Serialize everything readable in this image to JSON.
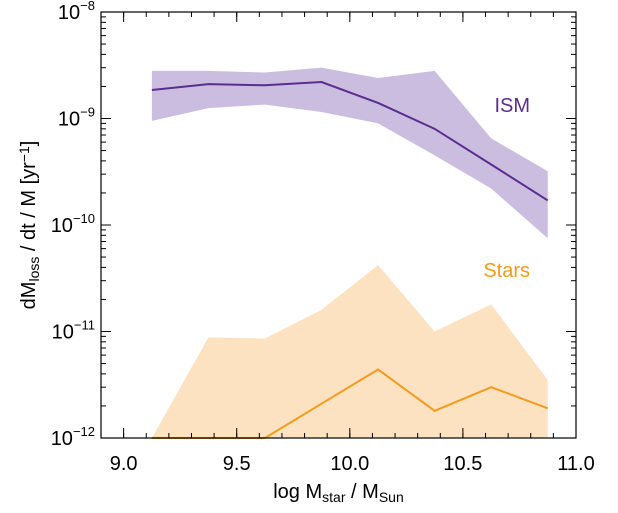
{
  "chart_data": {
    "type": "band-line",
    "x_label": [
      {
        "text": "log M"
      },
      {
        "text": "star",
        "sub": true
      },
      {
        "text": " / M"
      },
      {
        "text": "Sun",
        "sub": true
      }
    ],
    "y_label": [
      {
        "text": "dM"
      },
      {
        "text": "loss",
        "sub": true
      },
      {
        "text": " / dt / M [yr"
      },
      {
        "text": "−1",
        "sup": true
      },
      {
        "text": "]"
      }
    ],
    "x": [
      9.125,
      9.375,
      9.625,
      9.875,
      10.125,
      10.375,
      10.625,
      10.875
    ],
    "xlim": [
      8.9,
      11.0
    ],
    "xticks": [
      {
        "value": 9.0,
        "label": "9.0"
      },
      9.5,
      {
        "value": 10.0,
        "label": "10.0"
      },
      10.5,
      {
        "value": 11.0,
        "label": "11.0"
      }
    ],
    "ylim": [
      1e-12,
      1e-08
    ],
    "yscale": "log",
    "yticks": [
      {
        "value": 1e-12,
        "label": "10",
        "exponent": "−12"
      },
      {
        "value": 1e-11,
        "label": "10",
        "exponent": "−11"
      },
      {
        "value": 1e-10,
        "label": "10",
        "exponent": "−10"
      },
      {
        "value": 1e-09,
        "label": "10",
        "exponent": "−9"
      },
      {
        "value": 1e-08,
        "label": "10",
        "exponent": "−8"
      }
    ],
    "series": [
      {
        "name": "ISM",
        "color": "#5a2d8e",
        "band_color": "#cbbde0",
        "values": [
          1.85e-09,
          2.1e-09,
          2.05e-09,
          2.2e-09,
          1.4e-09,
          8e-10,
          3.7e-10,
          1.7e-10
        ],
        "upper": [
          2.8e-09,
          2.8e-09,
          2.7e-09,
          3e-09,
          2.4e-09,
          2.8e-09,
          6.5e-10,
          3.2e-10
        ],
        "lower": [
          9.5e-10,
          1.25e-09,
          1.35e-09,
          1.15e-09,
          9e-10,
          4.5e-10,
          2.2e-10,
          7.5e-11
        ]
      },
      {
        "name": "Stars",
        "color": "#f29b1d",
        "band_color": "#fde2c1",
        "values": [
          1e-12,
          1e-12,
          1e-12,
          2.1e-12,
          4.4e-12,
          1.8e-12,
          3e-12,
          1.9e-12
        ],
        "upper": [
          1e-12,
          8.8e-12,
          8.6e-12,
          1.6e-11,
          4.2e-11,
          1e-11,
          1.8e-11,
          3.5e-12
        ],
        "lower": [
          1e-12,
          1e-12,
          1e-12,
          1e-12,
          1e-12,
          1e-12,
          1e-12,
          1e-12
        ]
      }
    ]
  }
}
